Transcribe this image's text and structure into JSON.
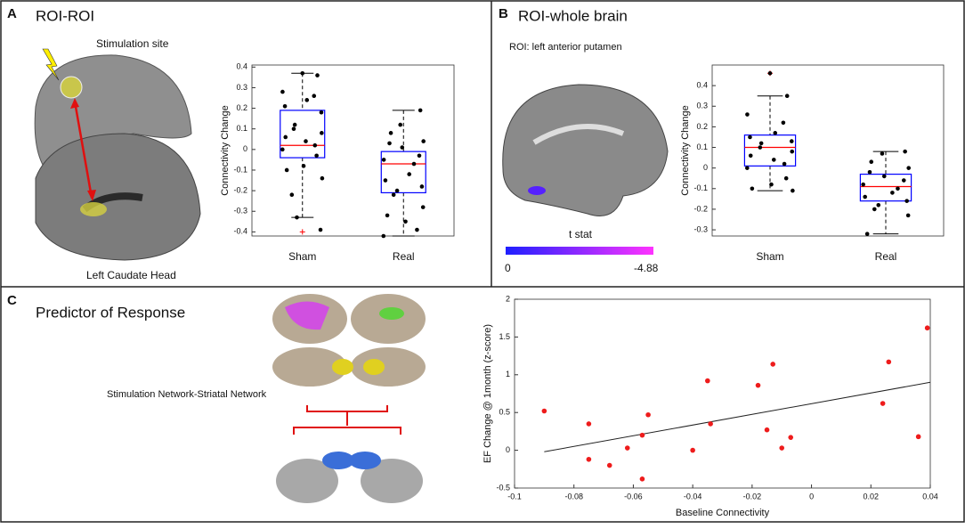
{
  "panels": {
    "a": {
      "letter": "A",
      "title": "ROI-ROI",
      "top_label": "Stimulation site",
      "bottom_label": "Left Caudate Head"
    },
    "b": {
      "letter": "B",
      "title": "ROI-whole brain",
      "roi_label": "ROI: left anterior putamen",
      "colorbar_title": "t stat",
      "colorbar_min": "0",
      "colorbar_max": "-4.88"
    },
    "c": {
      "letter": "C",
      "title": "Predictor of Response",
      "network_label": "Stimulation Network-Striatal Network"
    }
  },
  "chart_data": [
    {
      "type": "box",
      "ylabel": "Connectivity Change",
      "categories": [
        "Sham",
        "Real"
      ],
      "ylim": [
        -0.42,
        0.41
      ],
      "yticks": [
        -0.4,
        -0.3,
        -0.2,
        -0.1,
        0,
        0.1,
        0.2,
        0.3,
        0.4
      ],
      "box_color": "#0000ff",
      "median_color": "#ff0000",
      "boxes": [
        {
          "whisker_low": -0.33,
          "q1": -0.04,
          "median": 0.02,
          "q3": 0.19,
          "whisker_high": 0.37,
          "outliers": [
            -0.4
          ],
          "points": [
            0.37,
            0.36,
            0.28,
            0.26,
            0.24,
            0.21,
            0.18,
            0.12,
            0.1,
            0.08,
            0.06,
            0.04,
            0.02,
            0.0,
            -0.03,
            -0.08,
            -0.1,
            -0.14,
            -0.22,
            -0.33,
            -0.39
          ]
        },
        {
          "whisker_low": -0.42,
          "q1": -0.21,
          "median": -0.07,
          "q3": -0.01,
          "whisker_high": 0.19,
          "outliers": [],
          "points": [
            0.19,
            0.12,
            0.08,
            0.04,
            0.03,
            0.01,
            -0.03,
            -0.05,
            -0.07,
            -0.12,
            -0.15,
            -0.18,
            -0.2,
            -0.22,
            -0.28,
            -0.32,
            -0.35,
            -0.39,
            -0.42
          ]
        }
      ]
    },
    {
      "type": "box",
      "ylabel": "Connectivity Change",
      "categories": [
        "Sham",
        "Real"
      ],
      "ylim": [
        -0.33,
        0.5
      ],
      "yticks": [
        -0.3,
        -0.2,
        -0.1,
        0,
        0.1,
        0.2,
        0.3,
        0.4
      ],
      "box_color": "#0000ff",
      "median_color": "#ff0000",
      "boxes": [
        {
          "whisker_low": -0.11,
          "q1": 0.01,
          "median": 0.1,
          "q3": 0.16,
          "whisker_high": 0.35,
          "outliers": [
            0.46
          ],
          "points": [
            0.46,
            0.35,
            0.26,
            0.22,
            0.17,
            0.15,
            0.13,
            0.12,
            0.1,
            0.08,
            0.06,
            0.04,
            0.02,
            0.0,
            -0.05,
            -0.08,
            -0.1,
            -0.11
          ]
        },
        {
          "whisker_low": -0.32,
          "q1": -0.16,
          "median": -0.09,
          "q3": -0.03,
          "whisker_high": 0.08,
          "outliers": [],
          "points": [
            0.08,
            0.07,
            0.03,
            0.0,
            -0.02,
            -0.04,
            -0.06,
            -0.08,
            -0.1,
            -0.12,
            -0.14,
            -0.16,
            -0.18,
            -0.2,
            -0.23,
            -0.32
          ]
        }
      ]
    },
    {
      "type": "scatter",
      "xlabel": "Baseline Connectivity",
      "ylabel": "EF Change @ 1month (z-score)",
      "xlim": [
        -0.1,
        0.04
      ],
      "xticks": [
        -0.1,
        -0.08,
        -0.06,
        -0.04,
        -0.02,
        0,
        0.02,
        0.04
      ],
      "ylim": [
        -0.5,
        2
      ],
      "yticks": [
        -0.5,
        0,
        0.5,
        1,
        1.5,
        2
      ],
      "color": "#ee1c1c",
      "x": [
        -0.09,
        -0.075,
        -0.075,
        -0.068,
        -0.062,
        -0.057,
        -0.055,
        -0.057,
        -0.04,
        -0.035,
        -0.034,
        -0.018,
        -0.015,
        -0.013,
        -0.01,
        -0.007,
        0.024,
        0.026,
        0.036,
        0.039
      ],
      "y": [
        0.52,
        0.35,
        -0.12,
        -0.2,
        0.03,
        0.2,
        0.47,
        -0.38,
        0.0,
        0.92,
        0.35,
        0.86,
        0.27,
        1.14,
        0.03,
        0.17,
        0.62,
        1.17,
        0.18,
        1.62
      ],
      "fit_line": {
        "x": [
          -0.09,
          0.04
        ],
        "y": [
          -0.02,
          0.9
        ]
      }
    }
  ]
}
